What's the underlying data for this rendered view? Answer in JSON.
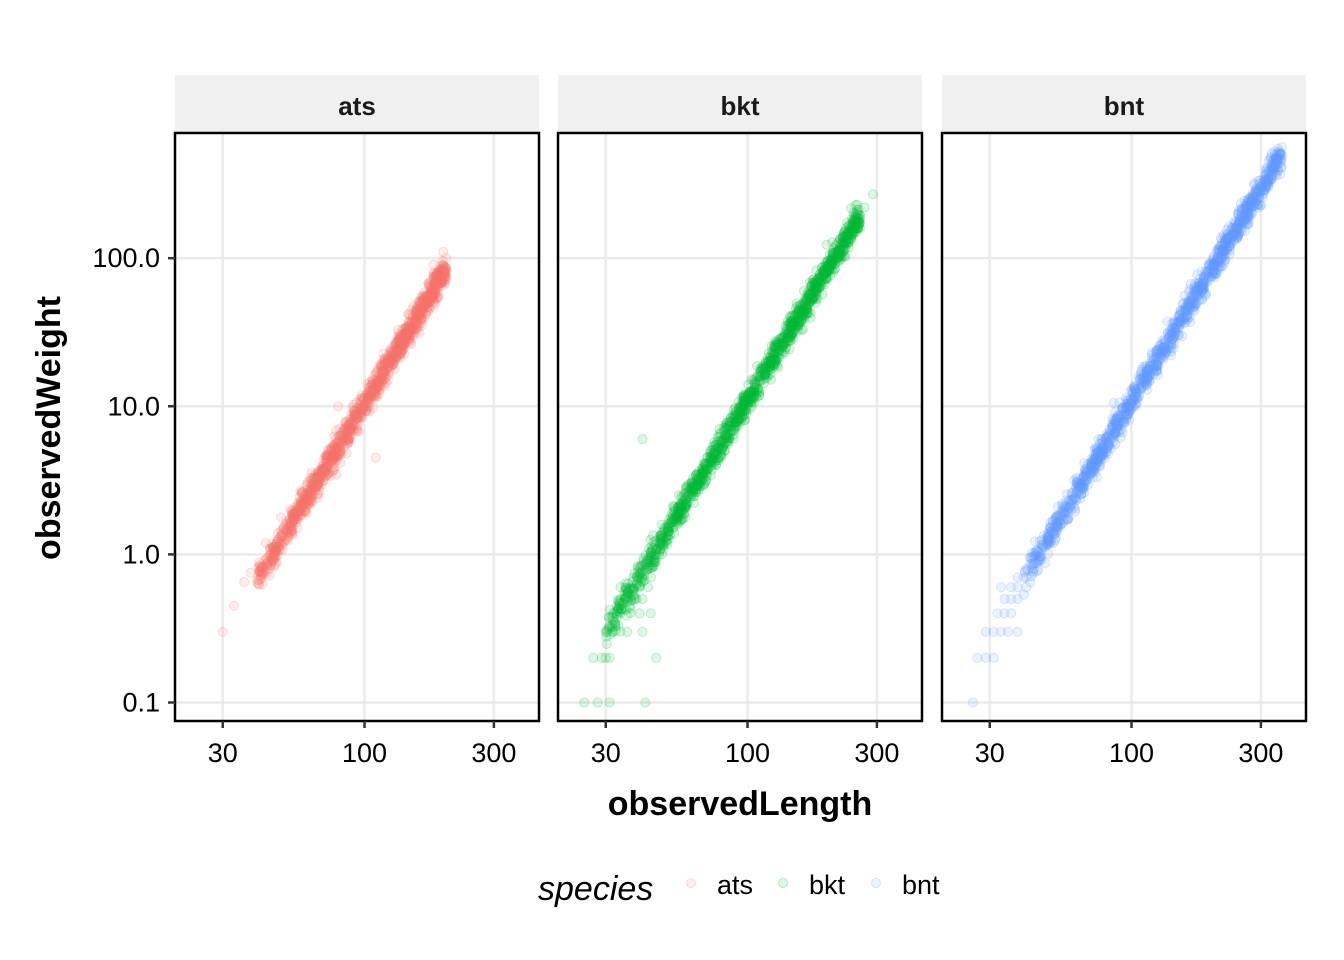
{
  "chart_data": {
    "type": "scatter",
    "facet_by": "species",
    "xlabel": "observedLength",
    "ylabel": "observedWeight",
    "x_scale": "log10",
    "y_scale": "log10",
    "xlim": [
      20,
      440
    ],
    "ylim": [
      0.075,
      700
    ],
    "x_ticks": [
      30,
      100,
      300
    ],
    "x_tick_labels": [
      "30",
      "100",
      "300"
    ],
    "y_ticks": [
      0.1,
      1,
      10,
      100
    ],
    "y_tick_labels": [
      "0.1",
      "1.0",
      "10.0",
      "100.0"
    ],
    "grid": true,
    "legend": {
      "title": "species",
      "position": "bottom",
      "labels": [
        "ats",
        "bkt",
        "bnt"
      ]
    },
    "series": [
      {
        "name": "ats",
        "color": "#F8766D",
        "trend": {
          "x_range": [
            40,
            200
          ],
          "y_at_100": 10.5,
          "slope": 3.0
        },
        "points": [
          [
            30,
            0.3
          ],
          [
            33,
            0.45
          ],
          [
            36,
            0.65
          ],
          [
            38,
            0.75
          ],
          [
            110,
            4.5
          ],
          [
            45,
            1.1
          ],
          [
            80,
            10
          ],
          [
            200,
            100
          ],
          [
            195,
            110
          ],
          [
            180,
            90
          ]
        ]
      },
      {
        "name": "bkt",
        "color": "#00BA38",
        "trend": {
          "x_range": [
            30,
            260
          ],
          "y_at_100": 11,
          "slope": 3.0
        },
        "points": [
          [
            25,
            0.1
          ],
          [
            28,
            0.1
          ],
          [
            31,
            0.1
          ],
          [
            42,
            0.1
          ],
          [
            27,
            0.2
          ],
          [
            29,
            0.2
          ],
          [
            30,
            0.2
          ],
          [
            31,
            0.2
          ],
          [
            46,
            0.2
          ],
          [
            30,
            0.3
          ],
          [
            32,
            0.3
          ],
          [
            34,
            0.3
          ],
          [
            36,
            0.3
          ],
          [
            41,
            0.3
          ],
          [
            32,
            0.4
          ],
          [
            34,
            0.4
          ],
          [
            37,
            0.4
          ],
          [
            40,
            0.4
          ],
          [
            44,
            0.4
          ],
          [
            34,
            0.5
          ],
          [
            36,
            0.5
          ],
          [
            39,
            0.5
          ],
          [
            41,
            0.5
          ],
          [
            34,
            0.6
          ],
          [
            37,
            0.6
          ],
          [
            40,
            0.6
          ],
          [
            43,
            0.6
          ],
          [
            38,
            0.7
          ],
          [
            41,
            0.7
          ],
          [
            44,
            0.7
          ],
          [
            40,
            0.8
          ],
          [
            43,
            0.8
          ],
          [
            46,
            0.9
          ],
          [
            41,
            6
          ],
          [
            290,
            270
          ],
          [
            270,
            220
          ],
          [
            260,
            160
          ]
        ]
      },
      {
        "name": "bnt",
        "color": "#619CFF",
        "trend": {
          "x_range": [
            40,
            360
          ],
          "y_at_100": 10.8,
          "slope": 3.0
        },
        "points": [
          [
            26,
            0.1
          ],
          [
            27,
            0.2
          ],
          [
            29,
            0.2
          ],
          [
            31,
            0.2
          ],
          [
            29,
            0.3
          ],
          [
            31,
            0.3
          ],
          [
            33,
            0.3
          ],
          [
            35,
            0.3
          ],
          [
            38,
            0.3
          ],
          [
            32,
            0.4
          ],
          [
            34,
            0.4
          ],
          [
            36,
            0.4
          ],
          [
            34,
            0.5
          ],
          [
            36,
            0.5
          ],
          [
            38,
            0.5
          ],
          [
            33,
            0.6
          ],
          [
            36,
            0.6
          ],
          [
            38,
            0.6
          ],
          [
            41,
            0.6
          ],
          [
            38,
            0.7
          ],
          [
            41,
            0.7
          ],
          [
            41,
            0.8
          ],
          [
            43,
            0.8
          ],
          [
            86,
            10.5
          ],
          [
            340,
            470
          ],
          [
            330,
            420
          ],
          [
            320,
            380
          ],
          [
            300,
            300
          ]
        ]
      }
    ]
  }
}
